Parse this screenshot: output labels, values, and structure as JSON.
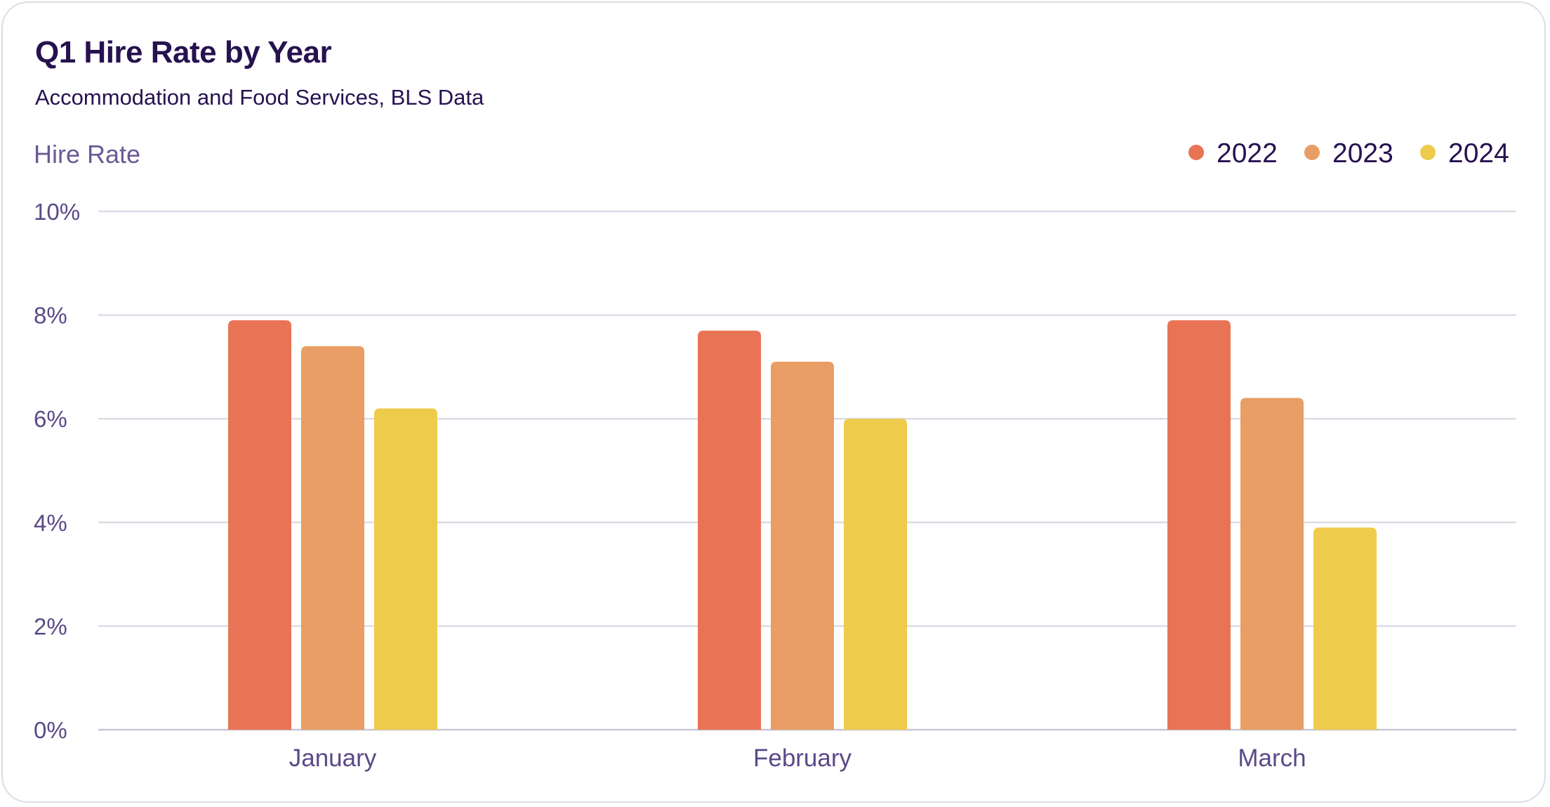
{
  "header": {
    "title": "Q1 Hire Rate by Year",
    "subtitle": "Accommodation and Food Services, BLS Data"
  },
  "chart_data": {
    "type": "bar",
    "title": "Q1 Hire Rate by Year",
    "subtitle": "Accommodation and Food Services, BLS Data",
    "xlabel": "",
    "ylabel": "Hire Rate",
    "categories": [
      "January",
      "February",
      "March"
    ],
    "series": [
      {
        "name": "2022",
        "color": "#e87455",
        "values": [
          7.9,
          7.7,
          7.9
        ]
      },
      {
        "name": "2023",
        "color": "#e89e64",
        "values": [
          7.4,
          7.1,
          6.4
        ]
      },
      {
        "name": "2024",
        "color": "#efcb4c",
        "values": [
          6.2,
          6.0,
          3.9
        ]
      }
    ],
    "ylim": [
      0,
      10
    ],
    "yticks": [
      0,
      2,
      4,
      6,
      8,
      10
    ],
    "ytick_labels": [
      "0%",
      "2%",
      "4%",
      "6%",
      "8%",
      "10%"
    ],
    "grid": true,
    "legend_position": "top-right"
  }
}
